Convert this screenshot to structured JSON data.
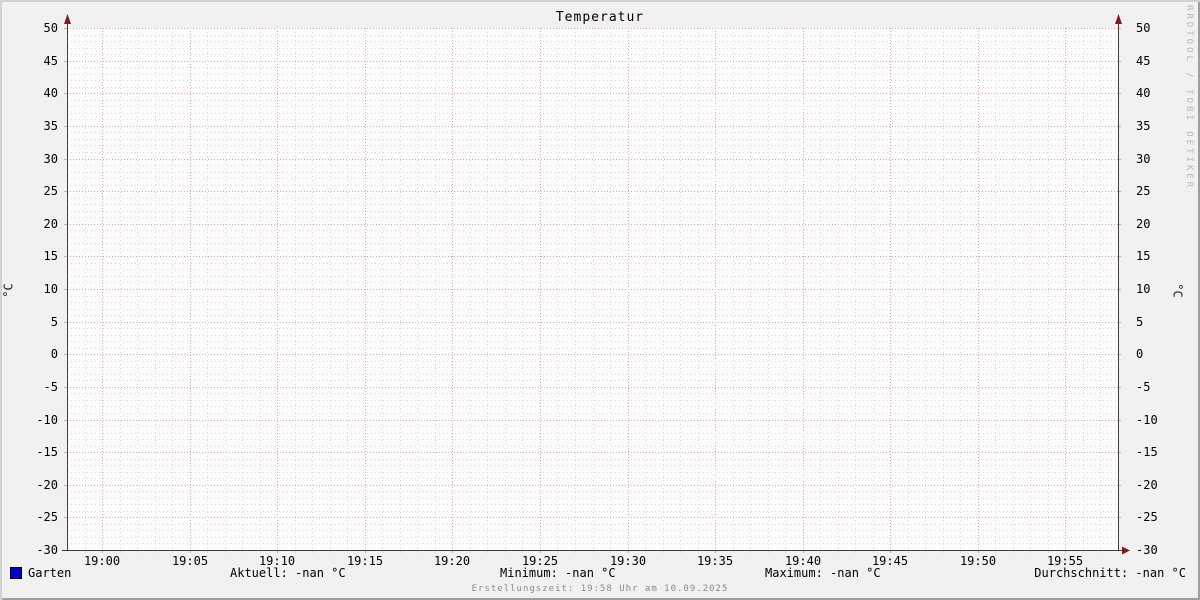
{
  "title": "Temperatur",
  "watermark": "RRDTOOL / TOBI OETIKER",
  "axes": {
    "left_unit": "°C",
    "right_unit": "°C"
  },
  "legend": {
    "series_label": "Garten",
    "series_color": "#0000cc",
    "aktuell": "Aktuell: -nan °C",
    "minimum": "Minimum: -nan °C",
    "maximum": "Maximum: -nan °C",
    "durchschnitt": "Durchschnitt: -nan °C"
  },
  "footer": "Erstellungszeit: 19:58 Uhr am 10.09.2025",
  "colors": {
    "background": "#f1f1f1",
    "canvas": "#fcfcfc",
    "major_grid": "#f0a0a0",
    "minor_grid": "#d8d8d8",
    "axis": "#3d3d3d",
    "arrow": "#7f1c1c",
    "watermark": "#b8b8b8",
    "footer_text": "#8a8a8a",
    "series_blue": "#0000cc"
  },
  "chart_data": {
    "type": "line",
    "title": "Temperatur",
    "xlabel": "",
    "ylabel": "°C",
    "ylim": [
      -30,
      50
    ],
    "y_major_step": 5,
    "y_minor_step": 1,
    "x_range": [
      "18:58",
      "19:58"
    ],
    "x_total_minutes": 60,
    "x_major_step_minutes": 5,
    "x_minor_step_minutes": 1,
    "x_first_major_minute_offset": 2,
    "x_tick_labels": [
      "19:00",
      "19:05",
      "19:10",
      "19:15",
      "19:20",
      "19:25",
      "19:30",
      "19:35",
      "19:40",
      "19:45",
      "19:50",
      "19:55"
    ],
    "y_tick_labels": [
      "50",
      "45",
      "40",
      "35",
      "30",
      "25",
      "20",
      "15",
      "10",
      "5",
      "0",
      "-5",
      "-10",
      "-15",
      "-20",
      "-25",
      "-30"
    ],
    "grid": true,
    "legend_position": "bottom",
    "series": [
      {
        "name": "Garten",
        "color": "#0000cc",
        "values": [],
        "note": "no data plotted – all values are NaN (-nan)"
      }
    ],
    "stats": {
      "aktuell": "-nan °C",
      "minimum": "-nan °C",
      "maximum": "-nan °C",
      "durchschnitt": "-nan °C"
    }
  }
}
